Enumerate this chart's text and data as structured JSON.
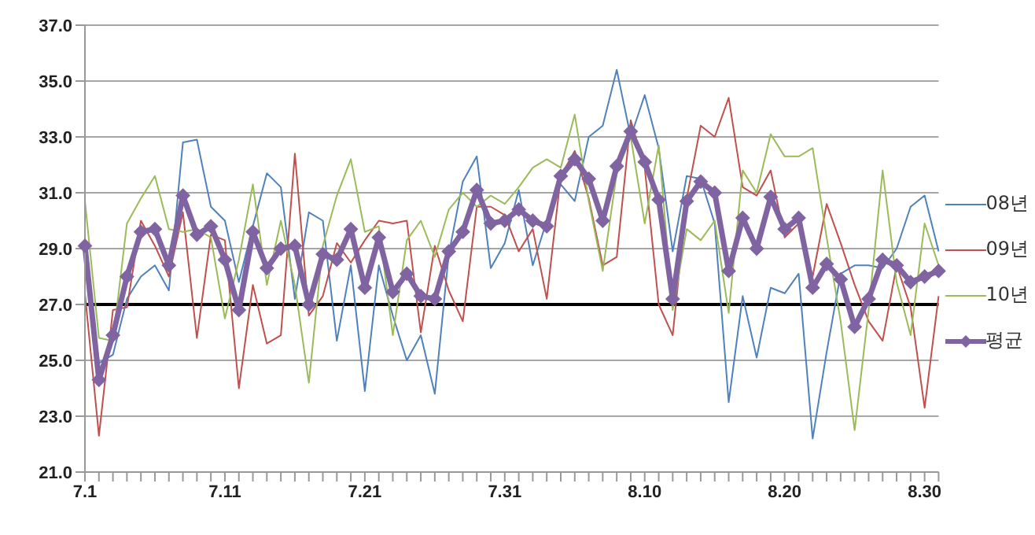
{
  "chart_data": {
    "type": "line",
    "categories": [
      "7.1",
      null,
      null,
      null,
      null,
      null,
      null,
      null,
      null,
      null,
      "7.11",
      null,
      null,
      null,
      null,
      null,
      null,
      null,
      null,
      null,
      "7.21",
      null,
      null,
      null,
      null,
      null,
      null,
      null,
      null,
      null,
      "7.31",
      null,
      null,
      null,
      null,
      null,
      null,
      null,
      null,
      null,
      "8.10",
      null,
      null,
      null,
      null,
      null,
      null,
      null,
      null,
      null,
      "8.20",
      null,
      null,
      null,
      null,
      null,
      null,
      null,
      null,
      null,
      "8.30",
      null
    ],
    "series": [
      {
        "name": "08년",
        "color": "#4f81bd",
        "marker": "none",
        "values": [
          29.2,
          24.9,
          25.2,
          27.2,
          28.0,
          28.4,
          27.5,
          32.8,
          32.9,
          30.5,
          30.0,
          27.8,
          29.8,
          31.7,
          31.2,
          27.2,
          30.3,
          30.0,
          25.7,
          28.4,
          23.9,
          28.4,
          26.6,
          25.0,
          25.9,
          23.8,
          28.8,
          31.4,
          32.3,
          28.3,
          29.2,
          31.1,
          28.4,
          30.0,
          31.3,
          30.7,
          33.0,
          33.4,
          35.4,
          33.0,
          34.5,
          32.6,
          28.9,
          31.6,
          31.5,
          29.9,
          23.5,
          27.3,
          25.1,
          27.6,
          27.4,
          28.1,
          22.2,
          25.3,
          28.1,
          28.4,
          28.4,
          28.3,
          29.0,
          30.5,
          30.9,
          28.9
        ]
      },
      {
        "name": "09년",
        "color": "#c0504d",
        "marker": "none",
        "values": [
          27.4,
          22.3,
          26.8,
          26.9,
          30.0,
          29.1,
          28.0,
          30.3,
          25.8,
          29.5,
          29.3,
          24.0,
          27.7,
          25.6,
          25.9,
          32.4,
          26.6,
          27.3,
          29.2,
          28.5,
          29.3,
          30.0,
          29.9,
          30.0,
          26.0,
          29.1,
          27.5,
          26.4,
          30.5,
          30.5,
          30.2,
          28.9,
          29.7,
          27.2,
          31.6,
          32.5,
          30.8,
          28.4,
          28.7,
          33.6,
          31.9,
          27.0,
          25.9,
          30.8,
          33.4,
          33.0,
          34.4,
          31.2,
          30.9,
          31.8,
          29.4,
          29.9,
          28.0,
          30.6,
          29.2,
          27.7,
          26.4,
          25.7,
          28.4,
          26.9,
          23.3,
          27.3
        ]
      },
      {
        "name": "10년",
        "color": "#9bbb59",
        "marker": "none",
        "values": [
          30.7,
          25.8,
          25.7,
          29.9,
          30.8,
          31.6,
          29.7,
          29.6,
          29.7,
          29.4,
          26.5,
          28.6,
          31.3,
          27.7,
          30.0,
          27.7,
          24.2,
          29.1,
          30.9,
          32.2,
          29.6,
          29.8,
          25.9,
          29.3,
          30.0,
          28.7,
          30.4,
          31.0,
          30.5,
          30.9,
          30.6,
          31.2,
          31.9,
          32.2,
          31.9,
          33.8,
          30.7,
          28.2,
          31.7,
          33.0,
          29.9,
          32.7,
          26.8,
          29.7,
          29.3,
          30.0,
          26.7,
          31.8,
          31.0,
          33.1,
          32.3,
          32.3,
          32.6,
          29.4,
          26.4,
          22.5,
          26.8,
          31.8,
          27.8,
          25.9,
          29.9,
          28.4
        ]
      },
      {
        "name": "평균",
        "color": "#8064a2",
        "marker": "diamond",
        "values": [
          29.1,
          24.3,
          25.9,
          28.0,
          29.6,
          29.7,
          28.4,
          30.9,
          29.5,
          29.8,
          28.6,
          26.8,
          29.6,
          28.3,
          29.0,
          29.1,
          27.0,
          28.8,
          28.6,
          29.7,
          27.6,
          29.4,
          27.45,
          28.1,
          27.3,
          27.2,
          28.9,
          29.6,
          31.1,
          29.9,
          30.0,
          30.4,
          30.0,
          29.8,
          31.6,
          32.2,
          31.5,
          30.0,
          31.95,
          33.2,
          32.1,
          30.75,
          27.2,
          30.7,
          31.4,
          31.0,
          28.2,
          30.1,
          29.0,
          30.85,
          29.7,
          30.1,
          27.6,
          28.45,
          27.9,
          26.2,
          27.2,
          28.6,
          28.4,
          27.8,
          28.0,
          28.2
        ]
      }
    ],
    "ylim": [
      21,
      37
    ],
    "yticks": [
      {
        "value": 21,
        "label": "21.0"
      },
      {
        "value": 23,
        "label": "23.0"
      },
      {
        "value": 25,
        "label": "25.0"
      },
      {
        "value": 27,
        "label": "27.0"
      },
      {
        "value": 29,
        "label": "29.0"
      },
      {
        "value": 31,
        "label": "31.0"
      },
      {
        "value": 33,
        "label": "33.0"
      },
      {
        "value": 35,
        "label": "35.0"
      },
      {
        "value": 37,
        "label": "37.0"
      }
    ],
    "grid": "y",
    "legend": "right",
    "ref_lines": [
      {
        "axis": "y",
        "value": 27,
        "color": "#000000"
      }
    ]
  }
}
